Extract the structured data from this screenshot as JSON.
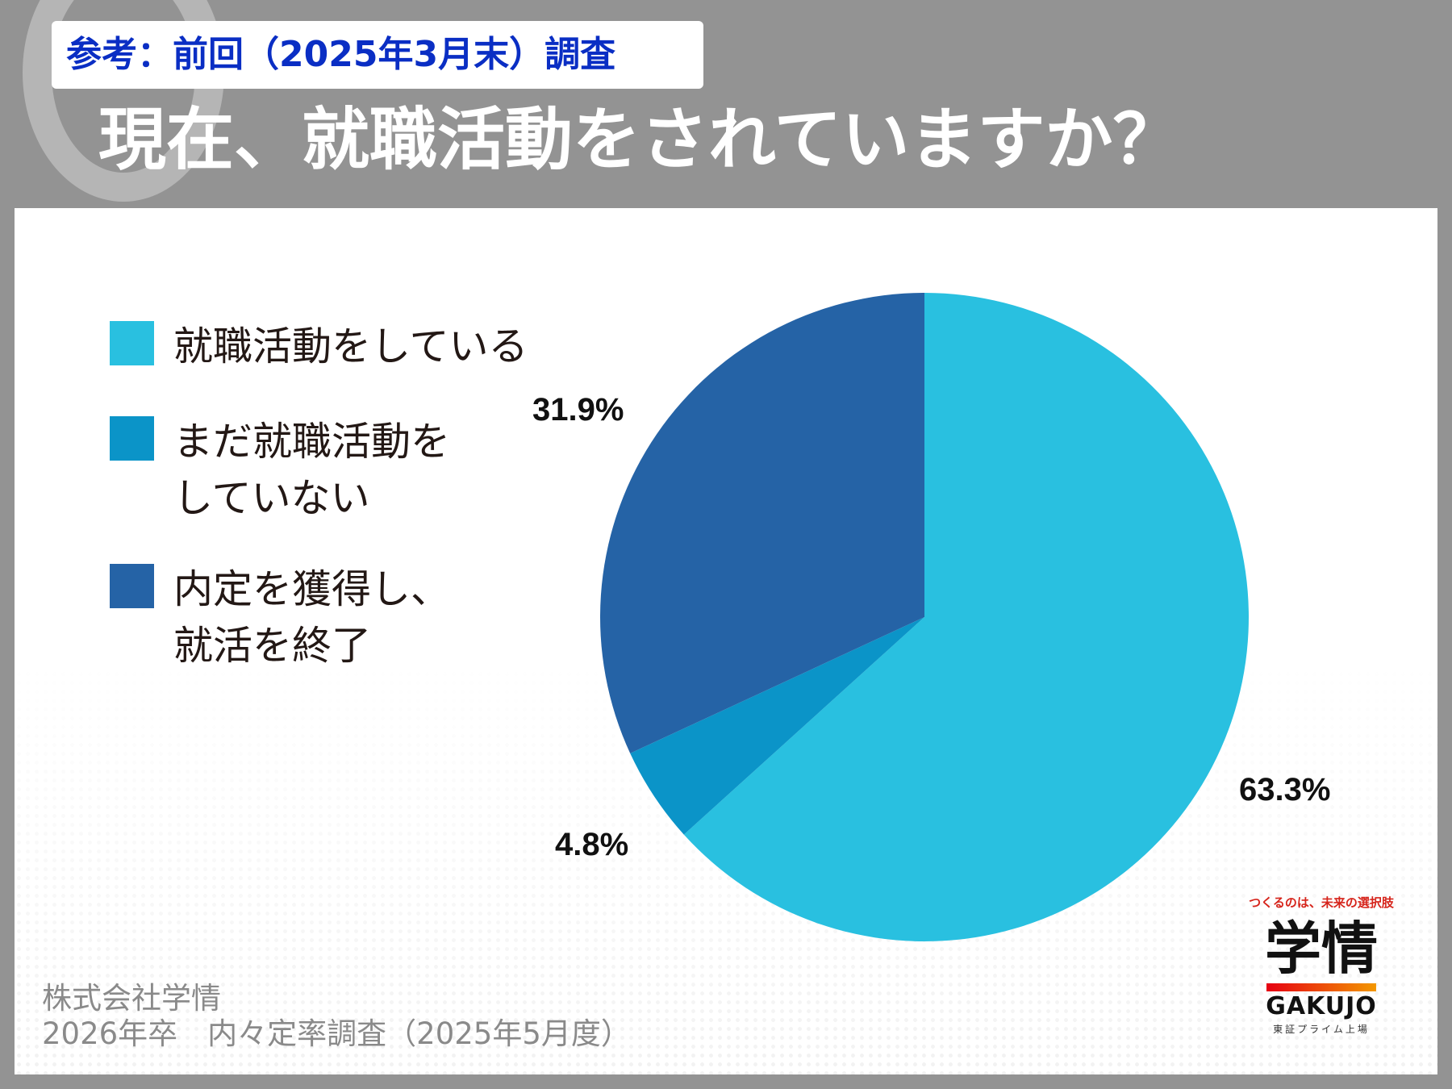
{
  "header": {
    "reference_tag": "参考：前回（2025年3月末）調査",
    "question": "現在、就職活動をされていますか？"
  },
  "chart_data": {
    "type": "pie",
    "title": "現在、就職活動をされていますか？",
    "legend_position": "left",
    "slices": [
      {
        "label": "就職活動をしている",
        "label_lines": [
          "就職活動をしている"
        ],
        "value": 63.3,
        "value_label": "63.3%",
        "color": "#29c0e0"
      },
      {
        "label": "まだ就職活動をしていない",
        "label_lines": [
          "まだ就職活動を",
          "していない"
        ],
        "value": 4.8,
        "value_label": "4.8%",
        "color": "#0b94c8"
      },
      {
        "label": "内定を獲得し、就活を終了",
        "label_lines": [
          "内定を獲得し、",
          "就活を終了"
        ],
        "value": 31.9,
        "value_label": "31.9%",
        "color": "#2563a6"
      }
    ]
  },
  "source": {
    "line1": "株式会社学情",
    "line2": "2026年卒　内々定率調査（2025年5月度）"
  },
  "logo": {
    "tagline": "つくるのは、未来の選択肢",
    "mark": "学情",
    "name": "GAKUJO",
    "sub": "東証プライム上場"
  }
}
